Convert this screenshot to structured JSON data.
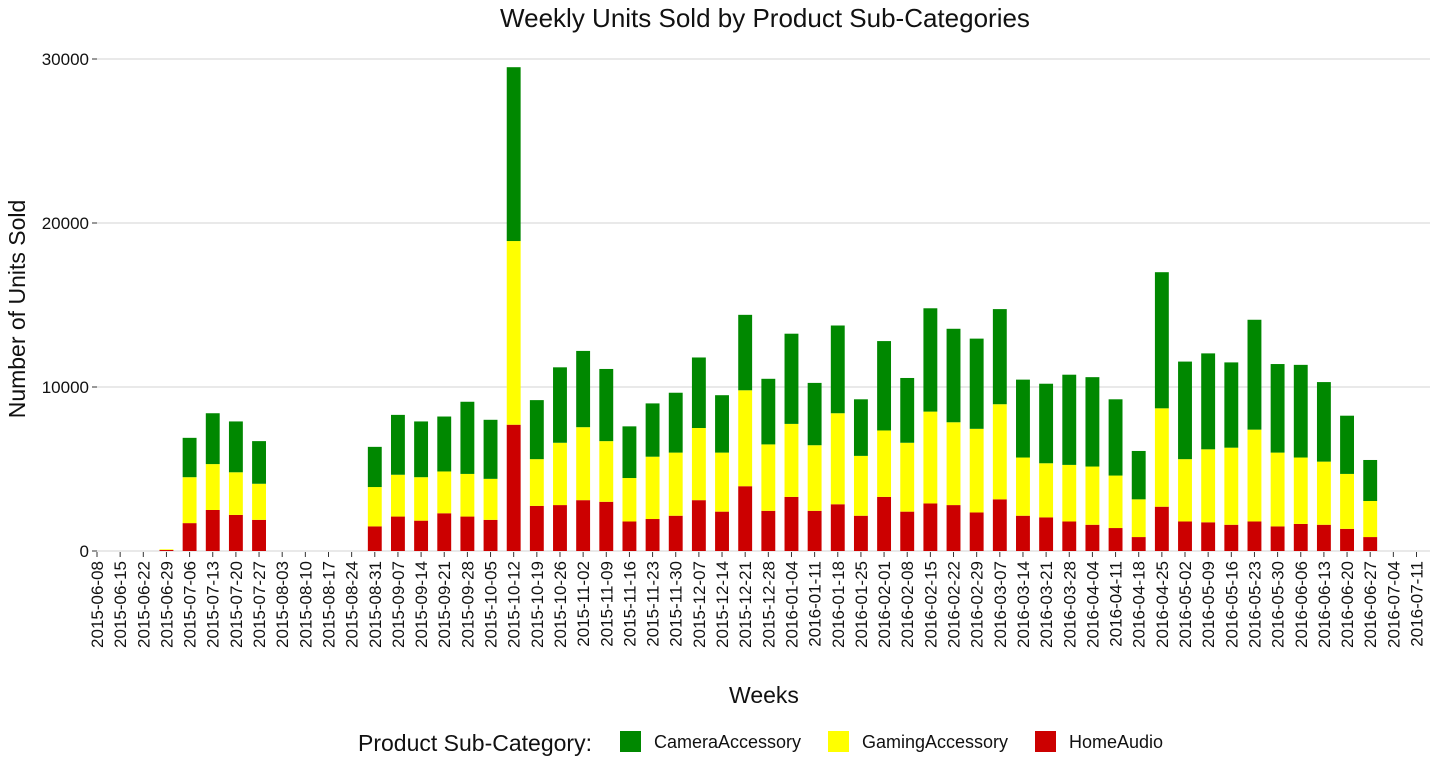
{
  "chart_data": {
    "type": "bar",
    "stacked": true,
    "title": "Weekly Units Sold by Product Sub-Categories",
    "xlabel": "Weeks",
    "ylabel": "Number of Units Sold",
    "ylim": [
      0,
      30000
    ],
    "yticks": [
      0,
      10000,
      20000,
      30000
    ],
    "grid": true,
    "legend": {
      "title": "Product Sub-Category:",
      "position": "bottom"
    },
    "categories": [
      "2015-06-08",
      "2015-06-15",
      "2015-06-22",
      "2015-06-29",
      "2015-07-06",
      "2015-07-13",
      "2015-07-20",
      "2015-07-27",
      "2015-08-03",
      "2015-08-10",
      "2015-08-17",
      "2015-08-24",
      "2015-08-31",
      "2015-09-07",
      "2015-09-14",
      "2015-09-21",
      "2015-09-28",
      "2015-10-05",
      "2015-10-12",
      "2015-10-19",
      "2015-10-26",
      "2015-11-02",
      "2015-11-09",
      "2015-11-16",
      "2015-11-23",
      "2015-11-30",
      "2015-12-07",
      "2015-12-14",
      "2015-12-21",
      "2015-12-28",
      "2016-01-04",
      "2016-01-11",
      "2016-01-18",
      "2016-01-25",
      "2016-02-01",
      "2016-02-08",
      "2016-02-15",
      "2016-02-22",
      "2016-02-29",
      "2016-03-07",
      "2016-03-14",
      "2016-03-21",
      "2016-03-28",
      "2016-04-04",
      "2016-04-11",
      "2016-04-18",
      "2016-04-25",
      "2016-05-02",
      "2016-05-09",
      "2016-05-16",
      "2016-05-23",
      "2016-05-30",
      "2016-06-06",
      "2016-06-13",
      "2016-06-20",
      "2016-06-27",
      "2016-07-04",
      "2016-07-11"
    ],
    "series": [
      {
        "name": "HomeAudio",
        "color": "#CC0000",
        "values": [
          0,
          0,
          0,
          60,
          1700,
          2500,
          2200,
          1900,
          0,
          0,
          0,
          0,
          1500,
          2100,
          1850,
          2300,
          2100,
          1900,
          7700,
          2750,
          2800,
          3100,
          3000,
          1800,
          1950,
          2150,
          3100,
          2400,
          3950,
          2450,
          3300,
          2450,
          2850,
          2150,
          3300,
          2400,
          2900,
          2800,
          2350,
          3150,
          2150,
          2050,
          1800,
          1600,
          1400,
          850,
          2700,
          1800,
          1750,
          1600,
          1800,
          1500,
          1650,
          1600,
          1350,
          850,
          0,
          0
        ]
      },
      {
        "name": "GamingAccessory",
        "color": "#FFFF00",
        "values": [
          0,
          0,
          0,
          40,
          2800,
          2800,
          2600,
          2200,
          0,
          0,
          0,
          0,
          2400,
          2550,
          2650,
          2550,
          2600,
          2500,
          11200,
          2850,
          3800,
          4450,
          3700,
          2650,
          3800,
          3850,
          4400,
          3600,
          5850,
          4050,
          4450,
          4000,
          5550,
          3650,
          4050,
          4200,
          5600,
          5050,
          5100,
          5800,
          3550,
          3300,
          3450,
          3550,
          3200,
          2300,
          6000,
          3800,
          4450,
          4700,
          5600,
          4500,
          4050,
          3850,
          3350,
          2200,
          0,
          0
        ]
      },
      {
        "name": "CameraAccessory",
        "color": "#008800",
        "values": [
          0,
          0,
          0,
          0,
          2400,
          3100,
          3100,
          2600,
          0,
          0,
          0,
          0,
          2450,
          3650,
          3400,
          3350,
          4400,
          3600,
          10600,
          3600,
          4600,
          4650,
          4400,
          3150,
          3250,
          3650,
          4300,
          3500,
          4600,
          4000,
          5500,
          3800,
          5350,
          3450,
          5450,
          3950,
          6300,
          5700,
          5500,
          5800,
          4750,
          4850,
          5500,
          5450,
          4650,
          2950,
          8300,
          5950,
          5850,
          5200,
          6700,
          5400,
          5650,
          4850,
          3550,
          2500,
          0,
          0
        ]
      }
    ]
  }
}
